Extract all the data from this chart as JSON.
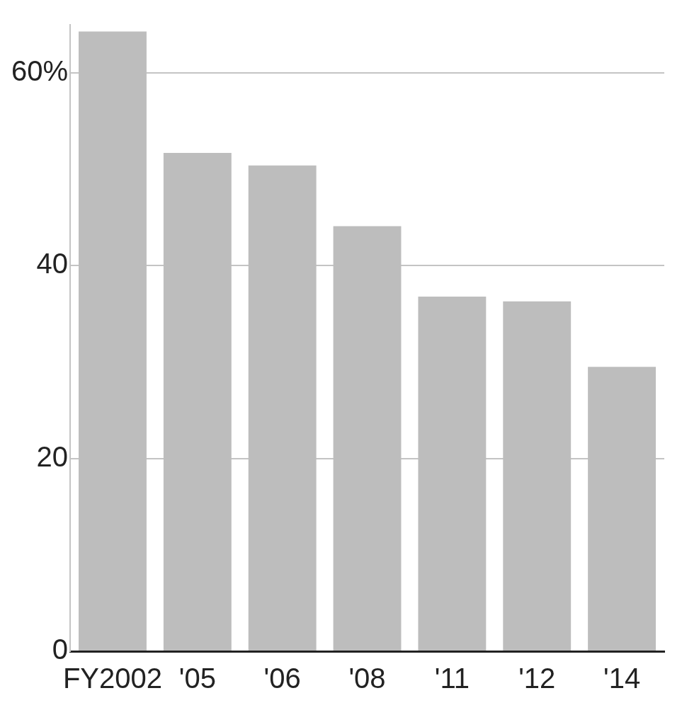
{
  "chart_data": {
    "type": "bar",
    "categories": [
      "FY2002",
      "'05",
      "'06",
      "'08",
      "'11",
      "'12",
      "'14"
    ],
    "values": [
      64.3,
      51.7,
      50.4,
      44.1,
      36.8,
      36.3,
      29.5
    ],
    "color": "#bdbdbd",
    "ylim": [
      0,
      65
    ],
    "yticks": [
      0,
      20,
      40,
      {
        "value": 60,
        "label": "60%"
      }
    ],
    "grid": "y",
    "legend": false
  }
}
